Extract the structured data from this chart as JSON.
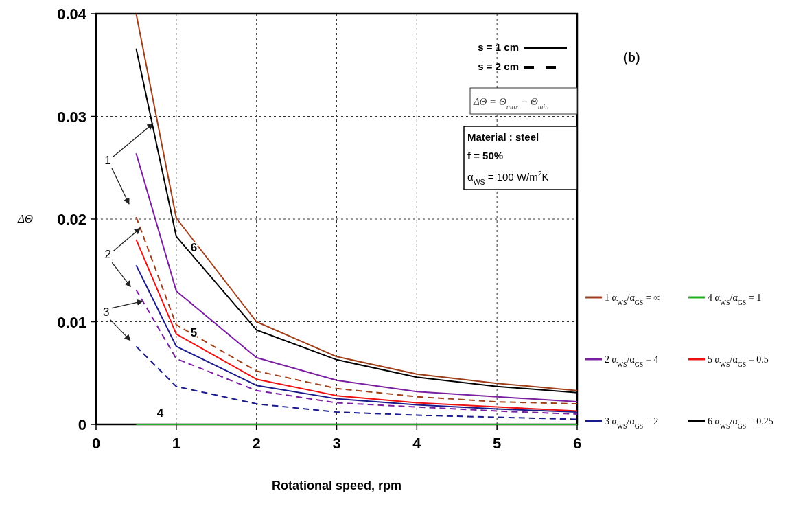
{
  "chart_data": {
    "type": "line",
    "xlabel": "Rotational speed, rpm",
    "ylabel": "ΔΘ",
    "x": [
      0.5,
      1,
      2,
      3,
      4,
      5,
      6
    ],
    "xlim": [
      0,
      6
    ],
    "xticks": [
      0,
      1,
      2,
      3,
      4,
      5,
      6
    ],
    "ylim": [
      0,
      0.04
    ],
    "yticks": [
      0,
      0.01,
      0.02,
      0.03,
      0.04
    ],
    "grid": true,
    "legend": "right",
    "marker": "none",
    "series": [
      {
        "name": "1 α$_{WS}$/α$_{GS}$ = ∞",
        "color": "#a0401a",
        "line_style": "solid",
        "values": [
          0.04,
          0.0201,
          0.01,
          0.0066,
          0.0049,
          0.004,
          0.0033
        ]
      },
      {
        "name": "2 α$_{WS}$/α$_{GS}$ = 4",
        "color": "#7a1fa0",
        "line_style": "solid",
        "values": [
          0.0264,
          0.013,
          0.0065,
          0.0043,
          0.0032,
          0.0027,
          0.0022
        ]
      },
      {
        "name": "3 α$_{WS}$/α$_{GS}$ = 2",
        "color": "#1a1a8c",
        "line_style": "solid",
        "values": [
          0.0155,
          0.0076,
          0.0038,
          0.0025,
          0.0019,
          0.0015,
          0.0012
        ]
      },
      {
        "name": "4 α$_{WS}$/α$_{GS}$ = 1",
        "color": "#22b022",
        "line_style": "solid",
        "values": [
          0,
          0,
          0,
          0,
          0,
          0,
          0
        ]
      },
      {
        "name": "5 α$_{WS}$/α$_{GS}$ = 0.5",
        "color": "#ee1111",
        "line_style": "solid",
        "values": [
          0.018,
          0.0088,
          0.0044,
          0.0028,
          0.0021,
          0.0017,
          0.0013
        ]
      },
      {
        "name": "6 α$_{WS}$/α$_{GS}$ = 0.25",
        "color": "#000000",
        "line_style": "solid",
        "values": [
          0.0366,
          0.0183,
          0.0092,
          0.0063,
          0.0046,
          0.0037,
          0.0031
        ]
      },
      {
        "color": "#a0401a",
        "line_style": "dashed",
        "values": [
          0.0202,
          0.0097,
          0.0052,
          0.0035,
          0.0027,
          0.0022,
          0.002
        ]
      },
      {
        "color": "#7a1fa0",
        "line_style": "dashed",
        "values": [
          0.0131,
          0.0064,
          0.0033,
          0.0021,
          0.0017,
          0.0013,
          0.001
        ]
      },
      {
        "color": "#1a1a8c",
        "line_style": "dashed",
        "values": [
          0.0076,
          0.0037,
          0.002,
          0.0012,
          0.0009,
          0.0007,
          0.0005
        ]
      }
    ],
    "annotations": [
      "(b)",
      "s = 1 cm",
      "s = 2 cm",
      "ΔΘ = Θ$_{max}$ − Θ$_{min}$",
      "Material : steel",
      "f = 50%",
      "α$_{WS}$ = 100 W/m$^{2}$K",
      {
        "text": "1",
        "x": 0.71,
        "y": 0.0293
      },
      {
        "text": "2",
        "x": 0.55,
        "y": 0.0191
      },
      {
        "text": "3",
        "x": 0.58,
        "y": 0.012
      },
      {
        "text": "4",
        "x": 0.8,
        "y": 0
      },
      {
        "text": "5",
        "x": 1.1,
        "y": 0.0084
      },
      {
        "text": "6",
        "x": 1.1,
        "y": 0.0174
      }
    ]
  }
}
